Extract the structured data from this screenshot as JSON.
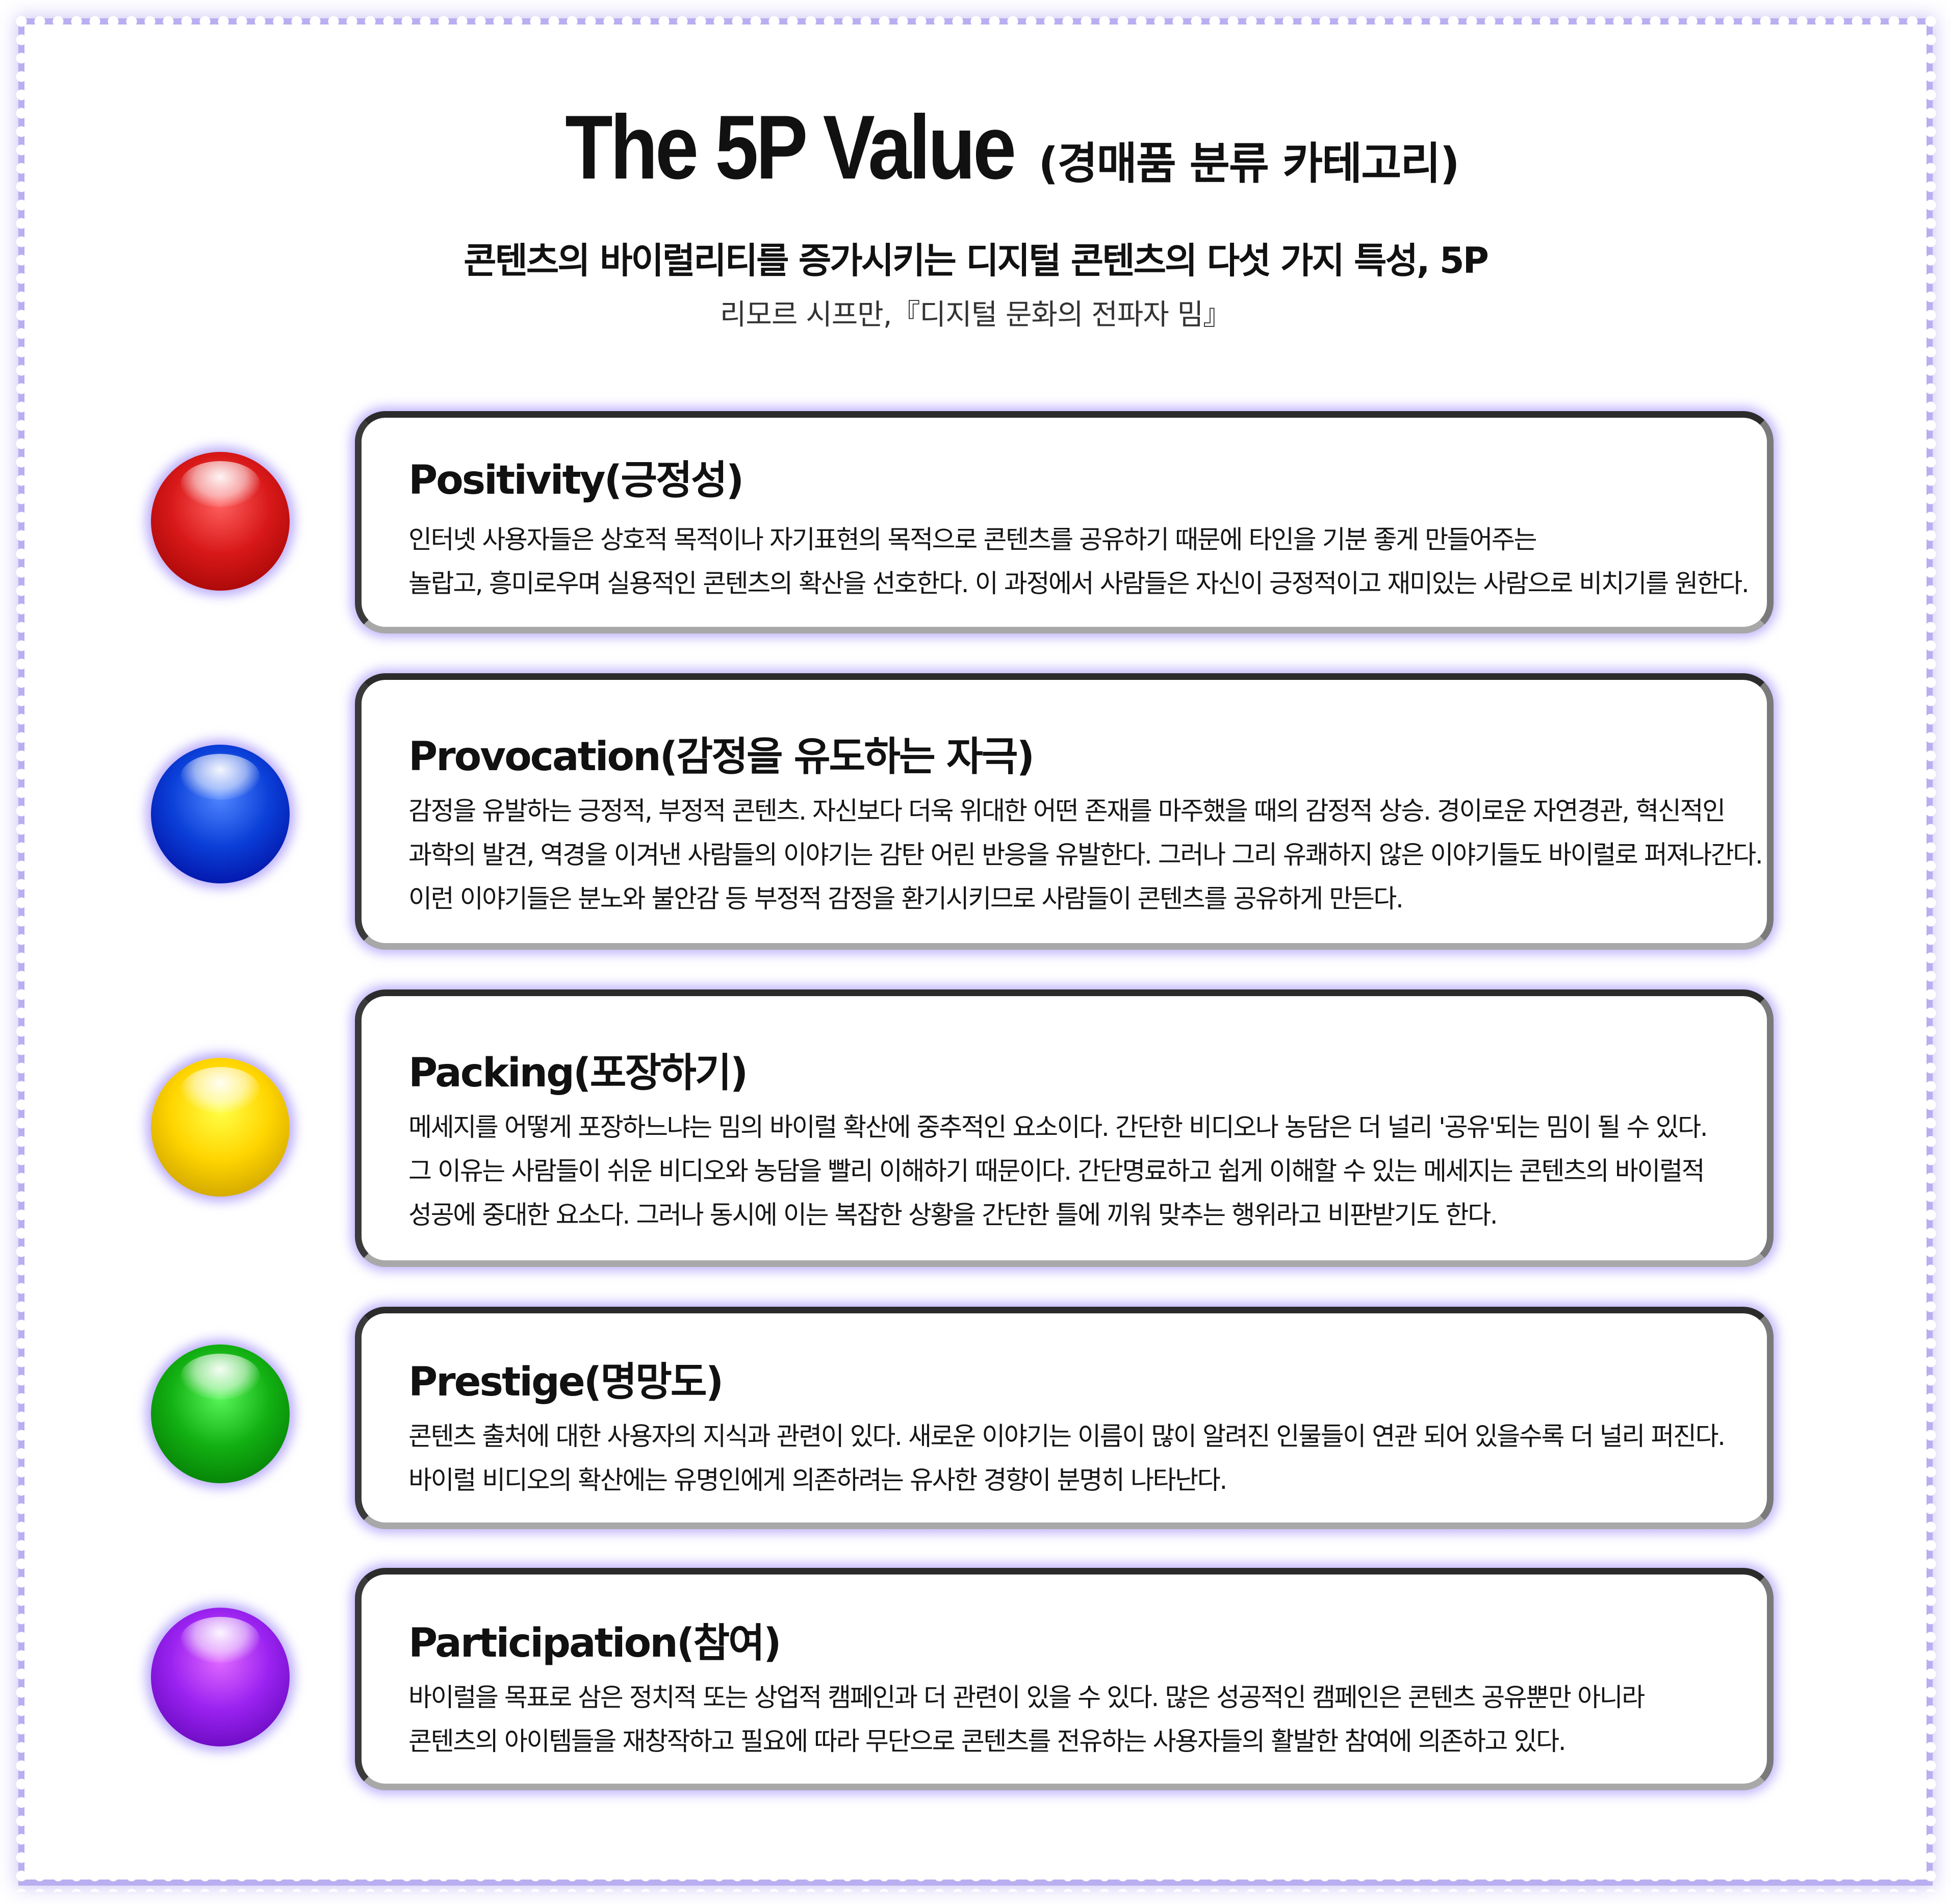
{
  "header": {
    "title_main": "The 5P Value",
    "title_sub": "(경매품 분류 카테고리)",
    "subtitle": "콘텐츠의 바이럴리티를 증가시키는 디지털 콘텐츠의 다섯 가지 특성, 5P",
    "source": "리모르 시프만,『디지털 문화의 전파자 밈』"
  },
  "items": [
    {
      "title": "Positivity(긍정성)",
      "color": "#d81818",
      "lines": [
        "인터넷 사용자들은 상호적 목적이나 자기표현의 목적으로 콘텐츠를 공유하기 때문에 타인을 기분 좋게 만들어주는",
        "놀랍고, 흥미로우며 실용적인 콘텐츠의 확산을 선호한다. 이 과정에서 사람들은 자신이 긍정적이고 재미있는 사람으로 비치기를 원한다."
      ]
    },
    {
      "title": "Provocation(감정을 유도하는 자극)",
      "color": "#0a3fd8",
      "lines": [
        "감정을 유발하는 긍정적, 부정적 콘텐츠. 자신보다 더욱 위대한 어떤 존재를 마주했을 때의 감정적 상승. 경이로운 자연경관, 혁신적인",
        "과학의 발견, 역경을 이겨낸 사람들의 이야기는 감탄 어린 반응을 유발한다. 그러나 그리 유쾌하지 않은 이야기들도 바이럴로 퍼져나간다.",
        "이런 이야기들은 분노와 불안감 등 부정적 감정을 환기시키므로 사람들이 콘텐츠를 공유하게 만든다."
      ]
    },
    {
      "title": "Packing(포장하기)",
      "color": "#ffd500",
      "lines": [
        "메세지를 어떻게 포장하느냐는 밈의 바이럴 확산에 중추적인 요소이다. 간단한 비디오나 농담은 더 널리 '공유'되는 밈이 될 수 있다.",
        "그 이유는 사람들이 쉬운 비디오와 농담을 빨리 이해하기 때문이다. 간단명료하고 쉽게 이해할 수 있는 메세지는 콘텐츠의 바이럴적",
        "성공에 중대한 요소다. 그러나 동시에 이는 복잡한 상황을 간단한 틀에 끼워 맞추는 행위라고 비판받기도 한다."
      ]
    },
    {
      "title": "Prestige(명망도)",
      "color": "#12b012",
      "lines": [
        "콘텐츠 출처에 대한 사용자의 지식과 관련이 있다. 새로운 이야기는 이름이 많이 알려진 인물들이 연관 되어 있을수록 더 널리 퍼진다.",
        "바이럴 비디오의 확산에는 유명인에게 의존하려는 유사한 경향이 분명히 나타난다."
      ]
    },
    {
      "title": "Participation(참여)",
      "color": "#9a22f0",
      "lines": [
        "바이럴을 목표로 삼은 정치적 또는 상업적 캠페인과 더 관련이 있을 수 있다. 많은 성공적인 캠페인은 콘텐츠 공유뿐만 아니라",
        "콘텐츠의 아이템들을 재창작하고 필요에 따라 무단으로 콘텐츠를 전유하는 사용자들의 활발한 참여에 의존하고 있다."
      ]
    }
  ]
}
